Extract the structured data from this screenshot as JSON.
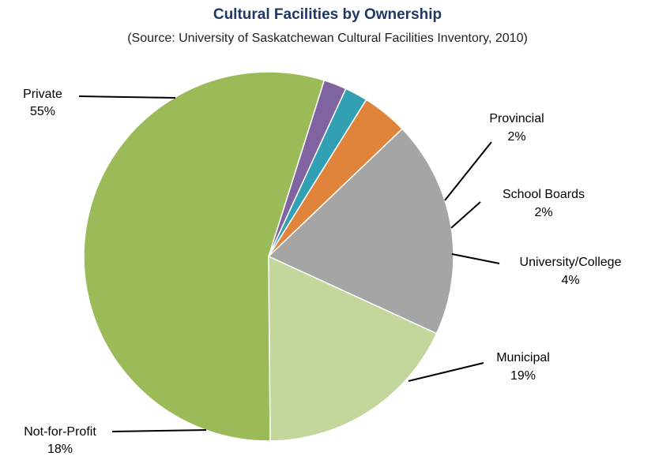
{
  "chart_data": {
    "type": "pie",
    "title": "Cultural Facilities by Ownership",
    "subtitle": "(Source: University of Saskatchewan Cultural Facilities Inventory, 2010)",
    "slices": [
      {
        "name": "Private",
        "value": 55,
        "label": "55%",
        "color": "#9bbb59"
      },
      {
        "name": "Provincial",
        "value": 2,
        "label": "2%",
        "color": "#8064a2"
      },
      {
        "name": "School Boards",
        "value": 2,
        "label": "2%",
        "color": "#31a0b3"
      },
      {
        "name": "University/College",
        "value": 4,
        "label": "4%",
        "color": "#e0843c"
      },
      {
        "name": "Municipal",
        "value": 19,
        "label": "19%",
        "color": "#a5a5a5"
      },
      {
        "name": "Not-for-Profit",
        "value": 18,
        "label": "18%",
        "color": "#c3d69b"
      }
    ]
  }
}
